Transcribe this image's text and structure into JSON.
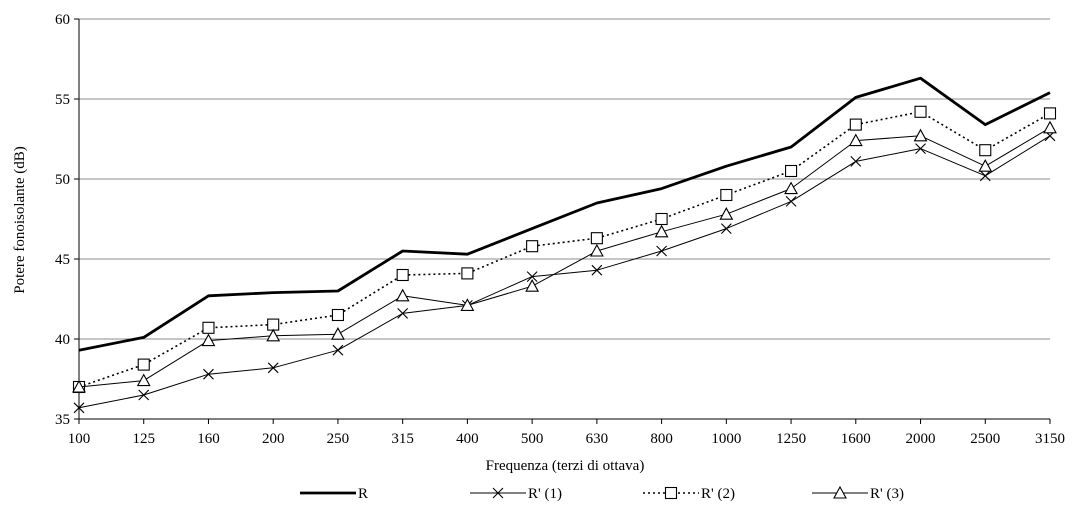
{
  "chart_data": {
    "type": "line",
    "title": "",
    "xlabel": "Frequenza (terzi di ottava)",
    "ylabel": "Potere fonoisolante (dB)",
    "categories": [
      "100",
      "125",
      "160",
      "200",
      "250",
      "315",
      "400",
      "500",
      "630",
      "800",
      "1000",
      "1250",
      "1600",
      "2000",
      "2500",
      "3150"
    ],
    "ylim": [
      35,
      60
    ],
    "yticks": [
      35,
      40,
      45,
      50,
      55,
      60
    ],
    "grid": "horizontal",
    "legend": "bottom",
    "series": [
      {
        "name": "R",
        "style": "solid-thick",
        "marker": "none",
        "color": "#000000",
        "values": [
          39.3,
          40.1,
          42.7,
          42.9,
          43.0,
          45.5,
          45.3,
          46.9,
          48.5,
          49.4,
          50.8,
          52.0,
          55.1,
          56.3,
          53.4,
          55.4
        ]
      },
      {
        "name": "R' (1)",
        "style": "solid",
        "marker": "x",
        "color": "#000000",
        "values": [
          35.7,
          36.5,
          37.8,
          38.2,
          39.3,
          41.6,
          42.1,
          43.9,
          44.3,
          45.5,
          46.9,
          48.6,
          51.1,
          51.9,
          50.2,
          52.7
        ]
      },
      {
        "name": "R' (2)",
        "style": "dotted",
        "marker": "square",
        "color": "#000000",
        "values": [
          37.0,
          38.4,
          40.7,
          40.9,
          41.5,
          44.0,
          44.1,
          45.8,
          46.3,
          47.5,
          49.0,
          50.5,
          53.4,
          54.2,
          51.8,
          54.1
        ]
      },
      {
        "name": "R' (3)",
        "style": "solid",
        "marker": "triangle",
        "color": "#000000",
        "values": [
          37.0,
          37.4,
          39.9,
          40.2,
          40.3,
          42.7,
          42.1,
          43.3,
          45.5,
          46.7,
          47.8,
          49.4,
          52.4,
          52.7,
          50.8,
          53.2
        ]
      }
    ]
  }
}
